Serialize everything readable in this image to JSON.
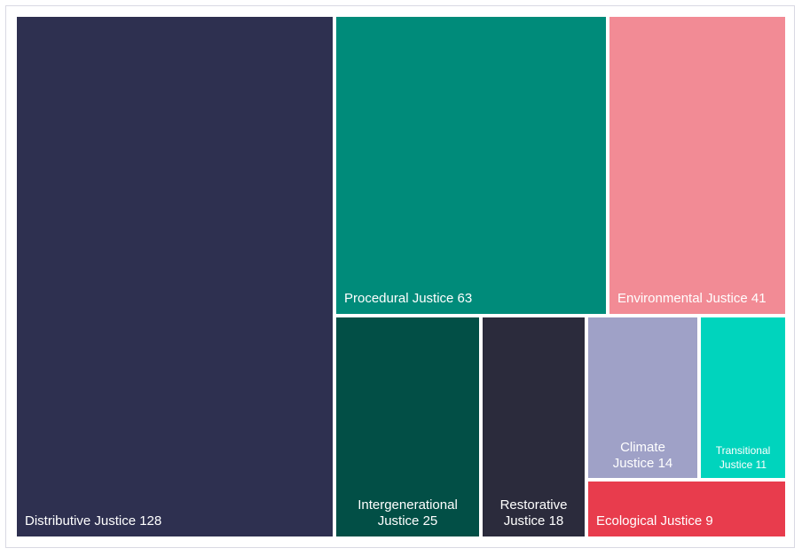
{
  "chart_data": {
    "type": "treemap",
    "title": "",
    "items": [
      {
        "name": "Distributive Justice",
        "value": 128,
        "label": "Distributive Justice 128",
        "color": "#2e3050"
      },
      {
        "name": "Procedural Justice",
        "value": 63,
        "label": "Procedural Justice 63",
        "color": "#008b7a"
      },
      {
        "name": "Environmental Justice",
        "value": 41,
        "label": "Environmental Justice 41",
        "color": "#f28b95"
      },
      {
        "name": "Intergenerational Justice",
        "value": 25,
        "label": "Intergenerational Justice 25",
        "color": "#024f46"
      },
      {
        "name": "Restorative Justice",
        "value": 18,
        "label": "Restorative Justice 18",
        "color": "#2b2b3c"
      },
      {
        "name": "Climate Justice",
        "value": 14,
        "label": "Climate Justice 14",
        "color": "#9fa1c7"
      },
      {
        "name": "Transitional Justice",
        "value": 11,
        "label": "Transitional Justice 11",
        "color": "#00d4bd"
      },
      {
        "name": "Ecological Justice",
        "value": 9,
        "label": "Ecological Justice 9",
        "color": "#e83c4d"
      }
    ]
  }
}
